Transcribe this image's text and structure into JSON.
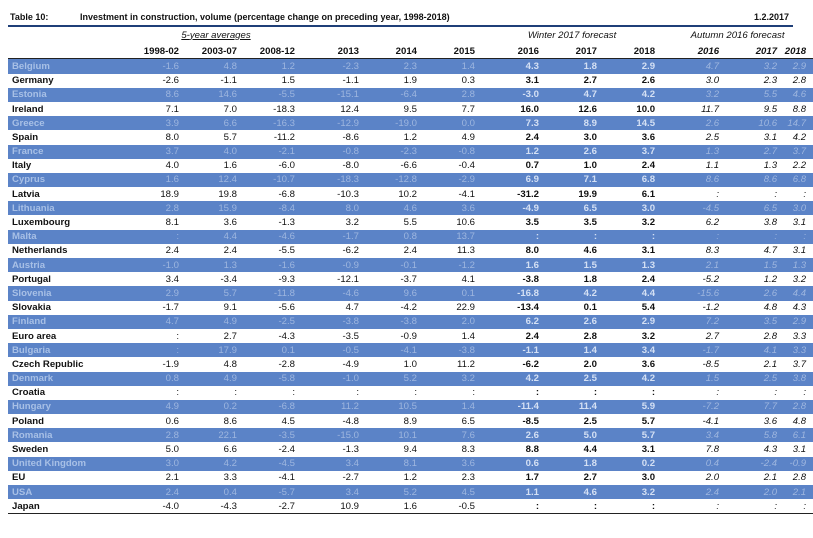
{
  "title": {
    "number": "Table 10:",
    "text": "Investment in construction, volume (percentage change on preceding year, 1998-2018)",
    "date": "1.2.2017"
  },
  "groups": {
    "averages": "5-year averages",
    "winter": "Winter 2017 forecast",
    "autumn": "Autumn 2016 forecast"
  },
  "columns": [
    "1998-02",
    "2003-07",
    "2008-12",
    "2013",
    "2014",
    "2015",
    "2016",
    "2017",
    "2018",
    "2016",
    "2017",
    "2018"
  ],
  "rows": [
    {
      "name": "Belgium",
      "values": [
        "-1.6",
        "4.8",
        "1.2",
        "-2.3",
        "2.3",
        "1.4",
        "4.3",
        "1.8",
        "2.9",
        "4.7",
        "3.2",
        "2.9"
      ]
    },
    {
      "name": "Germany",
      "values": [
        "-2.6",
        "-1.1",
        "1.5",
        "-1.1",
        "1.9",
        "0.3",
        "3.1",
        "2.7",
        "2.6",
        "3.0",
        "2.3",
        "2.8"
      ]
    },
    {
      "name": "Estonia",
      "values": [
        "8.6",
        "14.6",
        "-5.5",
        "-15.1",
        "-6.4",
        "2.8",
        "-3.0",
        "4.7",
        "4.2",
        "3.2",
        "5.5",
        "4.6"
      ]
    },
    {
      "name": "Ireland",
      "values": [
        "7.1",
        "7.0",
        "-18.3",
        "12.4",
        "9.5",
        "7.7",
        "16.0",
        "12.6",
        "10.0",
        "11.7",
        "9.5",
        "8.8"
      ]
    },
    {
      "name": "Greece",
      "values": [
        "3.9",
        "6.6",
        "-16.3",
        "-12.9",
        "-19.0",
        "0.0",
        "7.3",
        "8.9",
        "14.5",
        "2.6",
        "10.6",
        "14.7"
      ]
    },
    {
      "name": "Spain",
      "values": [
        "8.0",
        "5.7",
        "-11.2",
        "-8.6",
        "1.2",
        "4.9",
        "2.4",
        "3.0",
        "3.6",
        "2.5",
        "3.1",
        "4.2"
      ]
    },
    {
      "name": "France",
      "values": [
        "3.7",
        "4.0",
        "-2.1",
        "-0.8",
        "-2.3",
        "-0.8",
        "1.2",
        "2.6",
        "3.7",
        "1.3",
        "2.7",
        "3.7"
      ]
    },
    {
      "name": "Italy",
      "values": [
        "4.0",
        "1.6",
        "-6.0",
        "-8.0",
        "-6.6",
        "-0.4",
        "0.7",
        "1.0",
        "2.4",
        "1.1",
        "1.3",
        "2.2"
      ]
    },
    {
      "name": "Cyprus",
      "values": [
        "1.6",
        "12.4",
        "-10.7",
        "-18.3",
        "-12.8",
        "-2.9",
        "6.9",
        "7.1",
        "6.8",
        "8.6",
        "8.6",
        "6.8"
      ]
    },
    {
      "name": "Latvia",
      "values": [
        "18.9",
        "19.8",
        "-6.8",
        "-10.3",
        "10.2",
        "-4.1",
        "-31.2",
        "19.9",
        "6.1",
        ":",
        ":",
        ":"
      ]
    },
    {
      "name": "Lithuania",
      "values": [
        "2.8",
        "15.9",
        "-8.4",
        "8.0",
        "4.6",
        "3.6",
        "-4.9",
        "6.5",
        "3.0",
        "-4.5",
        "6.5",
        "3.0"
      ]
    },
    {
      "name": "Luxembourg",
      "values": [
        "8.1",
        "3.6",
        "-1.3",
        "3.2",
        "5.5",
        "10.6",
        "3.5",
        "3.5",
        "3.2",
        "6.2",
        "3.8",
        "3.1"
      ]
    },
    {
      "name": "Malta",
      "values": [
        ":",
        "4.4",
        "-4.6",
        "-1.7",
        "0.8",
        "13.7",
        ":",
        ":",
        ":",
        ":",
        ":",
        ":"
      ]
    },
    {
      "name": "Netherlands",
      "values": [
        "2.4",
        "2.4",
        "-5.5",
        "-6.2",
        "2.4",
        "11.3",
        "8.0",
        "4.6",
        "3.1",
        "8.3",
        "4.7",
        "3.1"
      ]
    },
    {
      "name": "Austria",
      "values": [
        "-1.0",
        "1.3",
        "-1.6",
        "-0.9",
        "-0.1",
        "-1.2",
        "1.6",
        "1.5",
        "1.3",
        "2.1",
        "1.5",
        "1.3"
      ]
    },
    {
      "name": "Portugal",
      "values": [
        "3.4",
        "-3.4",
        "-9.3",
        "-12.1",
        "-3.7",
        "4.1",
        "-3.8",
        "1.8",
        "2.4",
        "-5.2",
        "1.2",
        "3.2"
      ]
    },
    {
      "name": "Slovenia",
      "values": [
        "2.9",
        "5.7",
        "-11.8",
        "-4.6",
        "9.6",
        "0.1",
        "-16.8",
        "4.2",
        "4.4",
        "-15.6",
        "2.6",
        "4.4"
      ]
    },
    {
      "name": "Slovakia",
      "values": [
        "-1.7",
        "9.1",
        "-5.6",
        "4.7",
        "-4.2",
        "22.9",
        "-13.4",
        "0.1",
        "5.4",
        "-1.2",
        "4.8",
        "4.3"
      ]
    },
    {
      "name": "Finland",
      "values": [
        "4.7",
        "4.9",
        "-2.5",
        "-3.8",
        "-3.8",
        "2.0",
        "6.2",
        "2.6",
        "2.9",
        "7.2",
        "3.5",
        "2.9"
      ]
    },
    {
      "name": "Euro area",
      "values": [
        ":",
        "2.7",
        "-4.3",
        "-3.5",
        "-0.9",
        "1.4",
        "2.4",
        "2.8",
        "3.2",
        "2.7",
        "2.8",
        "3.3"
      ]
    },
    {
      "name": "Bulgaria",
      "values": [
        ":",
        "17.9",
        "0.1",
        "-0.5",
        "-4.1",
        "-3.8",
        "-1.1",
        "1.4",
        "3.4",
        "-1.7",
        "4.1",
        "3.3"
      ]
    },
    {
      "name": "Czech Republic",
      "values": [
        "-1.9",
        "4.8",
        "-2.8",
        "-4.9",
        "1.0",
        "11.2",
        "-6.2",
        "2.0",
        "3.6",
        "-8.5",
        "2.1",
        "3.7"
      ]
    },
    {
      "name": "Denmark",
      "values": [
        "0.8",
        "4.9",
        "-5.8",
        "-1.0",
        "5.2",
        "3.2",
        "4.2",
        "2.5",
        "4.2",
        "1.5",
        "2.5",
        "3.8"
      ]
    },
    {
      "name": "Croatia",
      "values": [
        ":",
        ":",
        ":",
        ":",
        ":",
        ":",
        ":",
        ":",
        ":",
        ":",
        ":",
        ":"
      ]
    },
    {
      "name": "Hungary",
      "values": [
        "4.9",
        "0.2",
        "-6.8",
        "11.2",
        "10.5",
        "1.4",
        "-11.4",
        "11.4",
        "5.9",
        "-7.2",
        "7.7",
        "2.8"
      ]
    },
    {
      "name": "Poland",
      "values": [
        "0.6",
        "8.6",
        "4.5",
        "-4.8",
        "8.9",
        "6.5",
        "-8.5",
        "2.5",
        "5.7",
        "-4.1",
        "3.6",
        "4.8"
      ]
    },
    {
      "name": "Romania",
      "values": [
        "2.8",
        "22.1",
        "-3.5",
        "-15.0",
        "10.1",
        "7.6",
        "2.6",
        "5.0",
        "5.7",
        "3.4",
        "5.8",
        "6.1"
      ]
    },
    {
      "name": "Sweden",
      "values": [
        "5.0",
        "6.6",
        "-2.4",
        "-1.3",
        "9.4",
        "8.3",
        "8.8",
        "4.4",
        "3.1",
        "7.8",
        "4.3",
        "3.1"
      ]
    },
    {
      "name": "United Kingdom",
      "values": [
        "3.0",
        "4.2",
        "-4.5",
        "3.4",
        "8.1",
        "3.6",
        "0.6",
        "1.8",
        "0.2",
        "0.4",
        "-2.4",
        "-0.9"
      ]
    },
    {
      "name": "EU",
      "values": [
        "2.1",
        "3.3",
        "-4.1",
        "-2.7",
        "1.2",
        "2.3",
        "1.7",
        "2.7",
        "3.0",
        "2.0",
        "2.1",
        "2.8"
      ]
    },
    {
      "name": "USA",
      "values": [
        "2.4",
        "0.4",
        "-5.7",
        "3.4",
        "5.2",
        "4.5",
        "1.1",
        "4.6",
        "3.2",
        "2.4",
        "2.0",
        "2.1"
      ]
    },
    {
      "name": "Japan",
      "values": [
        "-4.0",
        "-4.3",
        "-2.7",
        "10.9",
        "1.6",
        "-0.5",
        ":",
        ":",
        ":",
        ":",
        ":",
        ":"
      ]
    }
  ]
}
